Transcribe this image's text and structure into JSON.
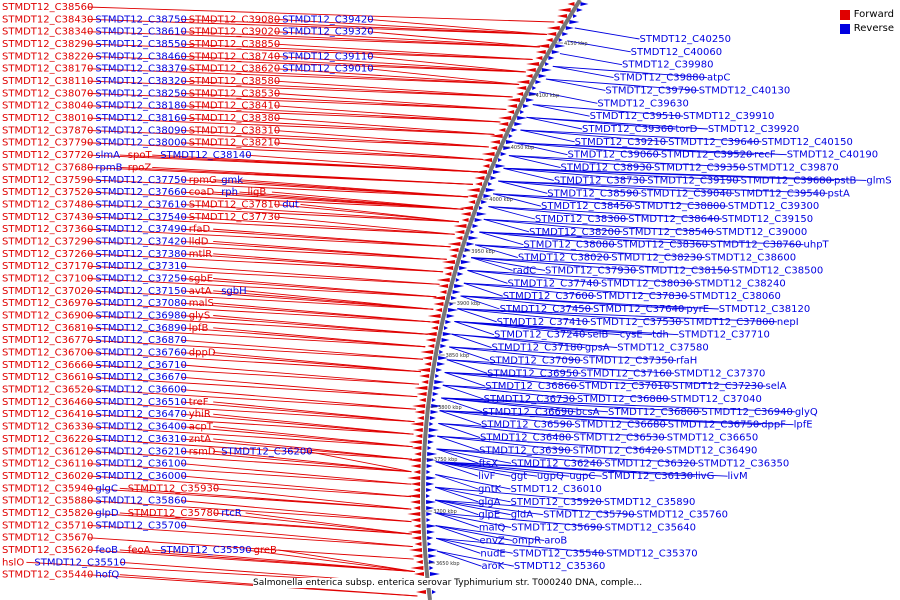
{
  "legend": {
    "forward_label": "Forward",
    "reverse_label": "Reverse"
  },
  "colors": {
    "forward": "#e00000",
    "reverse": "#0000e0",
    "backbone": "#777777"
  },
  "caption": "Salmonella enterica subsp. enterica serovar Typhimurium str. T000240 DNA, comple...",
  "ticks": [
    "4150 kbp",
    "4100 kbp",
    "4050 kbp",
    "4000 kbp",
    "3950 kbp",
    "3900 kbp",
    "3850 kbp",
    "3800 kbp",
    "3750 kbp",
    "3700 kbp",
    "3650 kbp"
  ],
  "forward_labels": [
    [
      "STMDT12_C38560"
    ],
    [
      "STMDT12_C38430",
      "STMDT12_C38750",
      "STMDT12_C39080",
      "STMDT12_C39420"
    ],
    [
      "STMDT12_C38340",
      "STMDT12_C38610",
      "STMDT12_C39020",
      "STMDT12_C39320"
    ],
    [
      "STMDT12_C38290",
      "STMDT12_C38550",
      "STMDT12_C38850"
    ],
    [
      "STMDT12_C38220",
      "STMDT12_C38460",
      "STMDT12_C38740",
      "STMDT12_C39110"
    ],
    [
      "STMDT12_C38170",
      "STMDT12_C38370",
      "STMDT12_C38620",
      "STMDT12_C39010"
    ],
    [
      "STMDT12_C38110",
      "STMDT12_C38320",
      "STMDT12_C38580"
    ],
    [
      "STMDT12_C38070",
      "STMDT12_C38250",
      "STMDT12_C38530"
    ],
    [
      "STMDT12_C38040",
      "STMDT12_C38180",
      "STMDT12_C38410"
    ],
    [
      "STMDT12_C38010",
      "STMDT12_C38160",
      "STMDT12_C38380"
    ],
    [
      "STMDT12_C37870",
      "STMDT12_C38090",
      "STMDT12_C38310"
    ],
    [
      "STMDT12_C37790",
      "STMDT12_C38000",
      "STMDT12_C38210"
    ],
    [
      "STMDT12_C37720",
      "slmA",
      "spoT",
      "STMDT12_C38140"
    ],
    [
      "STMDT12_C37680",
      "rpmB",
      "rpoZ"
    ],
    [
      "STMDT12_C37590",
      "STMDT12_C37750",
      "rpmG",
      "gmk"
    ],
    [
      "STMDT12_C37520",
      "STMDT12_C37660",
      "coaD",
      "rph",
      "ligB"
    ],
    [
      "STMDT12_C37480",
      "STMDT12_C37610",
      "STMDT12_C37810",
      "dut"
    ],
    [
      "STMDT12_C37430",
      "STMDT12_C37540",
      "STMDT12_C37730"
    ],
    [
      "STMDT12_C37360",
      "STMDT12_C37490",
      "rfaD"
    ],
    [
      "STMDT12_C37290",
      "STMDT12_C37420",
      "lldD"
    ],
    [
      "STMDT12_C37260",
      "STMDT12_C37380",
      "mtlR"
    ],
    [
      "STMDT12_C37170",
      "STMDT12_C37310"
    ],
    [
      "STMDT12_C37100",
      "STMDT12_C37250",
      "sgbE"
    ],
    [
      "STMDT12_C37020",
      "STMDT12_C37150",
      "avtA",
      "sgbH"
    ],
    [
      "STMDT12_C36970",
      "STMDT12_C37080",
      "malS"
    ],
    [
      "STMDT12_C36900",
      "STMDT12_C36980",
      "glyS"
    ],
    [
      "STMDT12_C36810",
      "STMDT12_C36890",
      "lpfB"
    ],
    [
      "STMDT12_C36770",
      "STMDT12_C36870"
    ],
    [
      "STMDT12_C36700",
      "STMDT12_C36760",
      "dppD"
    ],
    [
      "STMDT12_C36660",
      "STMDT12_C36710"
    ],
    [
      "STMDT12_C36610",
      "STMDT12_C36670"
    ],
    [
      "STMDT12_C36520",
      "STMDT12_C36600"
    ],
    [
      "STMDT12_C36460",
      "STMDT12_C36510",
      "treF"
    ],
    [
      "STMDT12_C36410",
      "STMDT12_C36470",
      "yhiR"
    ],
    [
      "STMDT12_C36330",
      "STMDT12_C36400",
      "acpT"
    ],
    [
      "STMDT12_C36220",
      "STMDT12_C36310",
      "zntA"
    ],
    [
      "STMDT12_C36120",
      "STMDT12_C36210",
      "rsmD",
      "STMDT12_C36200"
    ],
    [
      "STMDT12_C36110",
      "STMDT12_C36100"
    ],
    [
      "STMDT12_C36020",
      "STMDT12_C36000"
    ],
    [
      "STMDT12_C35940",
      "glgC",
      "STMDT12_C35930"
    ],
    [
      "STMDT12_C35880",
      "STMDT12_C35860"
    ],
    [
      "STMDT12_C35820",
      "glpD",
      "STMDT12_C35780",
      "rtcR"
    ],
    [
      "STMDT12_C35710",
      "STMDT12_C35700"
    ],
    [
      "STMDT12_C35670"
    ],
    [
      "STMDT12_C35620",
      "feoB",
      "feoA",
      "STMDT12_C35590",
      "greB"
    ],
    [
      "hslO",
      "STMDT12_C35510"
    ],
    [
      "STMDT12_C35440",
      "hofQ"
    ]
  ],
  "reverse_labels": [
    [
      "STMDT12_C40250"
    ],
    [
      "STMDT12_C40060"
    ],
    [
      "STMDT12_C39980"
    ],
    [
      "STMDT12_C39880",
      "atpC"
    ],
    [
      "STMDT12_C39790",
      "STMDT12_C40130"
    ],
    [
      "STMDT12_C39630"
    ],
    [
      "STMDT12_C39510",
      "STMDT12_C39910"
    ],
    [
      "STMDT12_C39360",
      "torD",
      "STMDT12_C39920"
    ],
    [
      "STMDT12_C39210",
      "STMDT12_C39640",
      "STMDT12_C40150"
    ],
    [
      "STMDT12_C39060",
      "STMDT12_C39520",
      "recF",
      "STMDT12_C40190"
    ],
    [
      "STMDT12_C38930",
      "STMDT12_C39350",
      "STMDT12_C39870"
    ],
    [
      "STMDT12_C38730",
      "STMDT12_C39190",
      "STMDT12_C39680",
      "pstB",
      "glmS"
    ],
    [
      "STMDT12_C38590",
      "STMDT12_C39040",
      "STMDT12_C39540",
      "pstA"
    ],
    [
      "STMDT12_C38450",
      "STMDT12_C38800",
      "STMDT12_C39300"
    ],
    [
      "STMDT12_C38300",
      "STMDT12_C38640",
      "STMDT12_C39150"
    ],
    [
      "STMDT12_C38200",
      "STMDT12_C38540",
      "STMDT12_C39000"
    ],
    [
      "STMDT12_C38080",
      "STMDT12_C38360",
      "STMDT12_C38760",
      "uhpT"
    ],
    [
      "STMDT12_C38020",
      "STMDT12_C38230",
      "STMDT12_C38600"
    ],
    [
      "radC",
      "STMDT12_C37930",
      "STMDT12_C38150",
      "STMDT12_C38500"
    ],
    [
      "STMDT12_C37740",
      "STMDT12_C38030",
      "STMDT12_C38240"
    ],
    [
      "STMDT12_C37600",
      "STMDT12_C37830",
      "STMDT12_C38060"
    ],
    [
      "STMDT12_C37450",
      "STMDT12_C37640",
      "pyrE",
      "STMDT12_C38120"
    ],
    [
      "STMDT12_C37410",
      "STMDT12_C37530",
      "STMDT12_C37800",
      "nepI"
    ],
    [
      "STMDT12_C37240",
      "selB",
      "cysE",
      "tdh",
      "STMDT12_C37710"
    ],
    [
      "STMDT12_C37180",
      "gpsA",
      "STMDT12_C37580"
    ],
    [
      "STMDT12_C37090",
      "STMDT12_C37350",
      "rfaH"
    ],
    [
      "STMDT12_C36950",
      "STMDT12_C37160",
      "STMDT12_C37370"
    ],
    [
      "STMDT12_C36860",
      "STMDT12_C37010",
      "STMDT12_C37230",
      "selA"
    ],
    [
      "STMDT12_C36730",
      "STMDT12_C36880",
      "STMDT12_C37040"
    ],
    [
      "STMDT12_C36690",
      "bcsA",
      "STMDT12_C36800",
      "STMDT12_C36940",
      "glyQ"
    ],
    [
      "STMDT12_C36590",
      "STMDT12_C36680",
      "STMDT12_C36750",
      "dppF",
      "lpfE"
    ],
    [
      "STMDT12_C36480",
      "STMDT12_C36530",
      "STMDT12_C36650"
    ],
    [
      "STMDT12_C36390",
      "STMDT12_C36420",
      "STMDT12_C36490"
    ],
    [
      "ftsX",
      "STMDT12_C36240",
      "STMDT12_C36320",
      "STMDT12_C36350"
    ],
    [
      "livF",
      "ggt",
      "ugpQ",
      "ugpC",
      "STMDT12_C36130",
      "livG",
      "livM"
    ],
    [
      "gntK",
      "STMDT12_C36010"
    ],
    [
      "glgA",
      "STMDT12_C35920",
      "STMDT12_C35890"
    ],
    [
      "glpE",
      "gldA",
      "STMDT12_C35790",
      "STMDT12_C35760"
    ],
    [
      "malQ",
      "STMDT12_C35690",
      "STMDT12_C35640"
    ],
    [
      "envZ",
      "ompR",
      "aroB"
    ],
    [
      "nudE",
      "STMDT12_C35540",
      "STMDT12_C35370"
    ],
    [
      "aroK",
      "STMDT12_C35360"
    ]
  ]
}
